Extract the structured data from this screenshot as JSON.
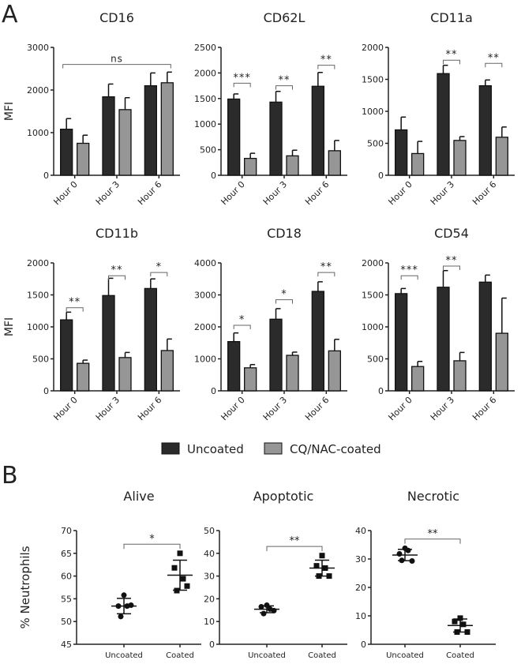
{
  "panel_labels": {
    "a": "A",
    "b": "B"
  },
  "legend": {
    "uncoated": "Uncoated",
    "coated": "CQ/NAC-coated"
  },
  "colors": {
    "uncoated": "#2b2b2b",
    "coated": "#969696",
    "axis": "#222222",
    "bracket": "#666666"
  },
  "chart_data": [
    {
      "type": "bar",
      "title": "CD16",
      "ylabel": "MFI",
      "ylim": [
        0,
        3000
      ],
      "yticks": [
        0,
        1000,
        2000,
        3000
      ],
      "categories": [
        "Hour 0",
        "Hour 3",
        "Hour 6"
      ],
      "series": [
        {
          "name": "Uncoated",
          "values": [
            1080,
            1840,
            2100
          ],
          "errors": [
            250,
            300,
            300
          ]
        },
        {
          "name": "CQ/NAC-coated",
          "values": [
            750,
            1540,
            2170
          ],
          "errors": [
            190,
            280,
            250
          ]
        }
      ],
      "significance": [
        {
          "label": "ns",
          "span": "all",
          "level": 2600
        }
      ]
    },
    {
      "type": "bar",
      "title": "CD62L",
      "ylabel": "",
      "ylim": [
        0,
        2500
      ],
      "yticks": [
        0,
        500,
        1000,
        1500,
        2000,
        2500
      ],
      "categories": [
        "Hour 0",
        "Hour 3",
        "Hour 6"
      ],
      "series": [
        {
          "name": "Uncoated",
          "values": [
            1490,
            1430,
            1740
          ],
          "errors": [
            100,
            210,
            270
          ]
        },
        {
          "name": "CQ/NAC-coated",
          "values": [
            330,
            380,
            480
          ],
          "errors": [
            100,
            110,
            200
          ]
        }
      ],
      "significance": [
        {
          "label": "***",
          "group": 0,
          "level": 1800
        },
        {
          "label": "**",
          "group": 1,
          "level": 1750
        },
        {
          "label": "**",
          "group": 2,
          "level": 2150
        }
      ]
    },
    {
      "type": "bar",
      "title": "CD11a",
      "ylabel": "",
      "ylim": [
        0,
        2000
      ],
      "yticks": [
        0,
        500,
        1000,
        1500,
        2000
      ],
      "categories": [
        "Hour 0",
        "Hour 3",
        "Hour 6"
      ],
      "series": [
        {
          "name": "Uncoated",
          "values": [
            710,
            1590,
            1400
          ],
          "errors": [
            200,
            130,
            90
          ]
        },
        {
          "name": "CQ/NAC-coated",
          "values": [
            340,
            545,
            595
          ],
          "errors": [
            190,
            60,
            160
          ]
        }
      ],
      "significance": [
        {
          "label": "**",
          "group": 1,
          "level": 1800
        },
        {
          "label": "**",
          "group": 2,
          "level": 1750
        }
      ]
    },
    {
      "type": "bar",
      "title": "CD11b",
      "ylabel": "MFI",
      "ylim": [
        0,
        2000
      ],
      "yticks": [
        0,
        500,
        1000,
        1500,
        2000
      ],
      "categories": [
        "Hour 0",
        "Hour 3",
        "Hour 6"
      ],
      "series": [
        {
          "name": "Uncoated",
          "values": [
            1110,
            1490,
            1600
          ],
          "errors": [
            120,
            270,
            150
          ]
        },
        {
          "name": "CQ/NAC-coated",
          "values": [
            430,
            520,
            630
          ],
          "errors": [
            50,
            80,
            180
          ]
        }
      ],
      "significance": [
        {
          "label": "**",
          "group": 0,
          "level": 1300
        },
        {
          "label": "**",
          "group": 1,
          "level": 1800
        },
        {
          "label": "*",
          "group": 2,
          "level": 1850
        }
      ]
    },
    {
      "type": "bar",
      "title": "CD18",
      "ylabel": "",
      "ylim": [
        0,
        4000
      ],
      "yticks": [
        0,
        1000,
        2000,
        3000,
        4000
      ],
      "categories": [
        "Hour 0",
        "Hour 3",
        "Hour 6"
      ],
      "series": [
        {
          "name": "Uncoated",
          "values": [
            1540,
            2240,
            3110
          ],
          "errors": [
            270,
            330,
            300
          ]
        },
        {
          "name": "CQ/NAC-coated",
          "values": [
            720,
            1110,
            1250
          ],
          "errors": [
            100,
            100,
            360
          ]
        }
      ],
      "significance": [
        {
          "label": "*",
          "group": 0,
          "level": 2050
        },
        {
          "label": "*",
          "group": 1,
          "level": 2850
        },
        {
          "label": "**",
          "group": 2,
          "level": 3700
        }
      ]
    },
    {
      "type": "bar",
      "title": "CD54",
      "ylabel": "",
      "ylim": [
        0,
        2000
      ],
      "yticks": [
        0,
        500,
        1000,
        1500,
        2000
      ],
      "categories": [
        "Hour 0",
        "Hour 3",
        "Hour 6"
      ],
      "series": [
        {
          "name": "Uncoated",
          "values": [
            1520,
            1620,
            1700
          ],
          "errors": [
            80,
            260,
            110
          ]
        },
        {
          "name": "CQ/NAC-coated",
          "values": [
            380,
            470,
            900
          ],
          "errors": [
            80,
            130,
            550
          ]
        }
      ],
      "significance": [
        {
          "label": "***",
          "group": 0,
          "level": 1800
        },
        {
          "label": "**",
          "group": 1,
          "level": 1950
        }
      ]
    },
    {
      "type": "scatter",
      "title": "Alive",
      "ylabel": "% Neutrophils",
      "ylim": [
        45,
        70
      ],
      "yticks": [
        45,
        50,
        55,
        60,
        65,
        70
      ],
      "categories": [
        "Uncoated",
        "Coated"
      ],
      "groups": [
        {
          "name": "Uncoated",
          "points": [
            55.8,
            53.4,
            53.4,
            53.6,
            51.1
          ],
          "mean": 53.4,
          "sd": 1.7
        },
        {
          "name": "Coated",
          "points": [
            65.0,
            61.8,
            59.4,
            57.8,
            56.8
          ],
          "mean": 60.2,
          "sd": 3.3
        }
      ],
      "significance": {
        "label": "*",
        "level": 67
      }
    },
    {
      "type": "scatter",
      "title": "Apoptotic",
      "ylabel": "",
      "ylim": [
        0,
        50
      ],
      "yticks": [
        0,
        10,
        20,
        30,
        40,
        50
      ],
      "categories": [
        "Uncoated",
        "Coated"
      ],
      "groups": [
        {
          "name": "Uncoated",
          "points": [
            17.2,
            16.5,
            15.5,
            14.8,
            13.5
          ],
          "mean": 15.4,
          "sd": 1.5
        },
        {
          "name": "Coated",
          "points": [
            39.0,
            34.5,
            33.5,
            30.0,
            30.0
          ],
          "mean": 33.5,
          "sd": 3.5
        }
      ],
      "significance": {
        "label": "**",
        "level": 43
      }
    },
    {
      "type": "scatter",
      "title": "Necrotic",
      "ylabel": "",
      "ylim": [
        0,
        40
      ],
      "yticks": [
        0,
        10,
        20,
        30,
        40
      ],
      "categories": [
        "Uncoated",
        "Coated"
      ],
      "groups": [
        {
          "name": "Uncoated",
          "points": [
            33.8,
            31.8,
            33.0,
            29.3,
            29.5
          ],
          "mean": 31.4,
          "sd": 2.0
        },
        {
          "name": "Coated",
          "points": [
            9.2,
            8.0,
            7.0,
            4.3,
            4.3
          ],
          "mean": 6.6,
          "sd": 2.3
        }
      ],
      "significance": {
        "label": "**",
        "level": 37
      }
    }
  ]
}
